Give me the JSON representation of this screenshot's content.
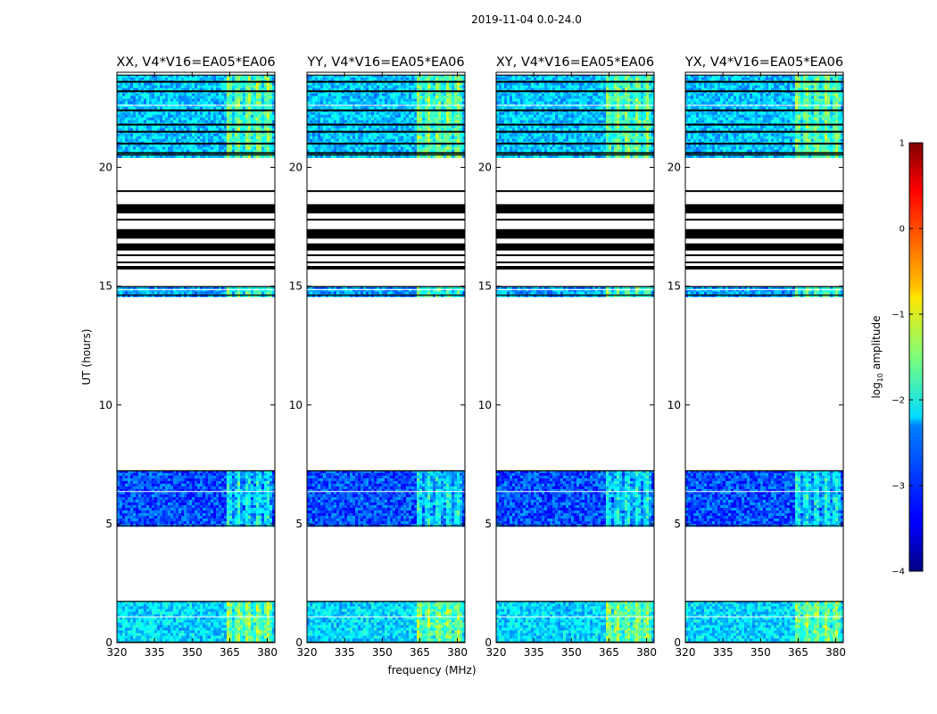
{
  "chart_data": {
    "type": "heatmap",
    "suptitle": "2019-11-04 0.0-24.0",
    "xlabel": "frequency (MHz)",
    "ylabel": "UT (hours)",
    "x_range_mhz": [
      320,
      383
    ],
    "y_range_hours": [
      0,
      24
    ],
    "x_ticks": [
      320,
      335,
      350,
      365,
      380
    ],
    "y_ticks": [
      0,
      5,
      10,
      15,
      20
    ],
    "colorbar": {
      "label": "log10 amplitude",
      "label_base": "log",
      "label_sub": "10",
      "label_rest": " amplitude",
      "colormap": "jet",
      "range": [
        -4,
        1
      ],
      "ticks": [
        1,
        0,
        -1,
        -2,
        -3,
        -4
      ]
    },
    "panels": [
      {
        "title": "XX, V4*V16=EA05*EA06"
      },
      {
        "title": "YY, V4*V16=EA05*EA06"
      },
      {
        "title": "XY, V4*V16=EA05*EA06"
      },
      {
        "title": "YX, V4*V16=EA05*EA06"
      }
    ],
    "bright_band_mhz": [
      363,
      381
    ],
    "data_blocks": [
      {
        "ut_start": 0.0,
        "ut_end": 1.75,
        "level": -2.3
      },
      {
        "ut_start": 4.9,
        "ut_end": 7.25,
        "level": -3.0
      },
      {
        "ut_start": 14.6,
        "ut_end": 15.0,
        "level": -2.6
      },
      {
        "ut_start": 20.5,
        "ut_end": 23.9,
        "level": -2.4
      }
    ],
    "flag_lines_ut": [
      16.0,
      16.3,
      17.1,
      17.8,
      18.1,
      19.0,
      20.6,
      21.0,
      21.5,
      21.8,
      22.4,
      23.2,
      23.6
    ],
    "flag_bands_ut": [
      {
        "start": 18.1,
        "end": 18.45
      },
      {
        "start": 17.0,
        "end": 17.4
      },
      {
        "start": 16.5,
        "end": 16.8
      },
      {
        "start": 15.7,
        "end": 15.85
      }
    ]
  }
}
